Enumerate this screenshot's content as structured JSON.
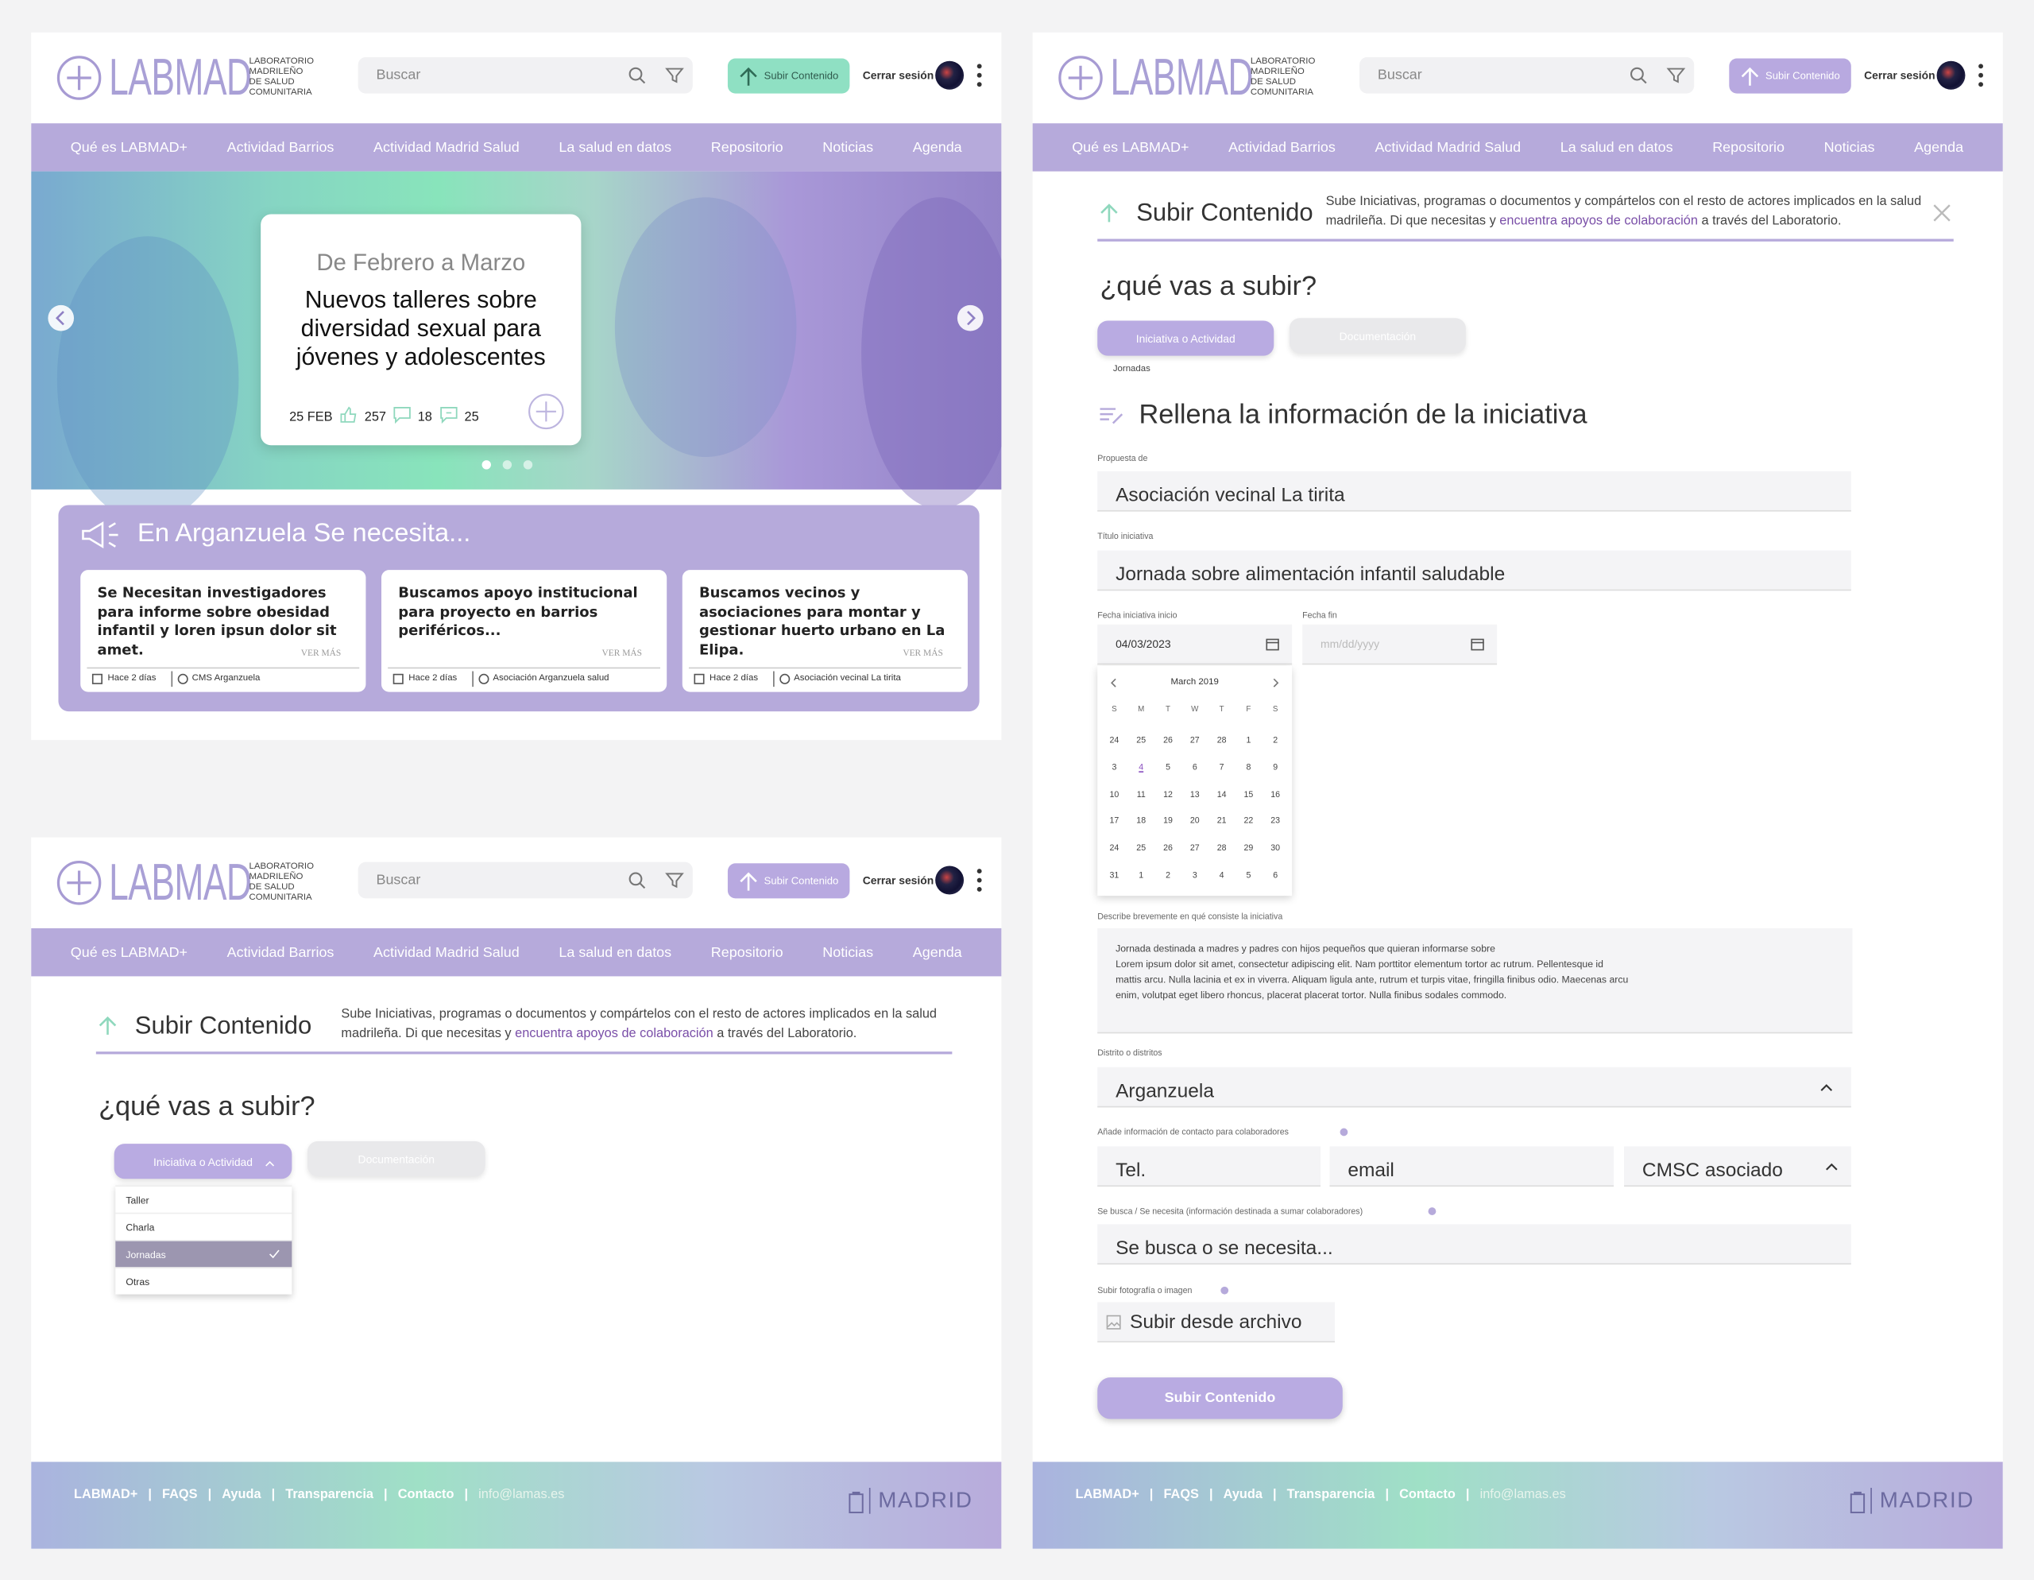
{
  "header": {
    "logo": "LABMAD",
    "logo_subtitle": [
      "LABORATORIO",
      "MADRILEÑO",
      "DE SALUD",
      "COMUNITARIA"
    ],
    "search_placeholder": "Buscar",
    "upload_button": "Subir Contenido",
    "logout": "Cerrar sesión"
  },
  "nav": [
    "Qué es LABMAD+",
    "Actividad Barrios",
    "Actividad Madrid Salud",
    "La salud en datos",
    "Repositorio",
    "Noticias",
    "Agenda"
  ],
  "home": {
    "hero": {
      "date_range": "De Febrero a Marzo",
      "title": "Nuevos talleres sobre diversidad sexual para jóvenes y adolescentes",
      "date": "25 FEB",
      "likes": 257,
      "comments": 18,
      "shares": 25
    },
    "needs": {
      "title": "En Arganzuela Se necesita...",
      "more": "VER MÁS",
      "cards": [
        {
          "text": "Se Necesitan investigadores para informe sobre obesidad infantil y loren ipsun dolor sit amet.",
          "time": "Hace 2 días",
          "org": "CMS Arganzuela"
        },
        {
          "text": "Buscamos apoyo institucional para proyecto en barrios periféricos...",
          "time": "Hace 2 días",
          "org": "Asociación Arganzuela salud"
        },
        {
          "text": "Buscamos vecinos y asociaciones para montar y gestionar huerto urbano en La Elipa.",
          "time": "Hace 2 días",
          "org": "Asociación vecinal La tirita"
        }
      ]
    }
  },
  "upload": {
    "title": "Subir Contenido",
    "description_before": "Sube Iniciativas, programas o documentos y compártelos con el resto de actores implicados en la salud madrileña. Di que necesitas y",
    "description_link": "encuentra apoyos de colaboración",
    "description_after": "a través del Laboratorio.",
    "question": "¿qué vas a subir?",
    "options": [
      "Iniciativa o Actividad",
      "Documentación"
    ],
    "subtypes": [
      "Taller",
      "Charla",
      "Jornadas",
      "Otras"
    ],
    "selected_subtype": "Jornadas"
  },
  "form": {
    "title": "Rellena la información de la iniciativa",
    "proposer_label": "Propuesta de",
    "proposer": "Asociación vecinal La tirita",
    "title_label": "Título iniciativa",
    "initiative_title": "Jornada sobre alimentación infantil saludable",
    "start_label": "Fecha iniciativa inicio",
    "start_date": "04/03/2023",
    "end_label": "Fecha fin",
    "end_placeholder": "mm/dd/yyyy",
    "calendar": {
      "month": "March 2019",
      "weekdays": [
        "S",
        "M",
        "T",
        "W",
        "T",
        "F",
        "S"
      ],
      "weeks": [
        [
          24,
          25,
          26,
          27,
          28,
          1,
          2
        ],
        [
          3,
          4,
          5,
          6,
          7,
          8,
          9
        ],
        [
          10,
          11,
          12,
          13,
          14,
          15,
          16
        ],
        [
          17,
          18,
          19,
          20,
          21,
          22,
          23
        ],
        [
          24,
          25,
          26,
          27,
          28,
          29,
          30
        ],
        [
          31,
          1,
          2,
          3,
          4,
          5,
          6
        ]
      ],
      "selected": 4
    },
    "description_label": "Describe brevemente en qué consiste la iniciativa",
    "description": [
      "Jornada destinada a madres y padres con hijos pequeños que quieran informarse sobre",
      "Lorem ipsum dolor sit amet, consectetur adipiscing elit. Nam porttitor elementum tortor ac rutrum. Pellentesque id",
      "mattis arcu. Nulla lacinia et ex in viverra. Aliquam ligula ante, rutrum et turpis vitae, fringilla finibus odio. Maecenas arcu",
      "enim, volutpat eget libero rhoncus, placerat placerat tortor. Nulla finibus sodales commodo."
    ],
    "district_label": "Distrito o distritos",
    "district": "Arganzuela",
    "contact_label": "Añade información de contacto para colaboradores",
    "phone": "Tel.",
    "email": "email",
    "cmsc": "CMSC asociado",
    "need_label": "Se busca / Se necesita (información destinada a sumar colaboradores)",
    "need": "Se busca o se necesita...",
    "photo_label": "Subir fotografía o imagen",
    "photo_button": "Subir desde archivo",
    "submit": "Subir Contenido"
  },
  "footer": {
    "links": [
      "LABMAD+",
      "FAQS",
      "Ayuda",
      "Transparencia",
      "Contacto",
      "info@lamas.es"
    ],
    "city": "MADRID"
  }
}
